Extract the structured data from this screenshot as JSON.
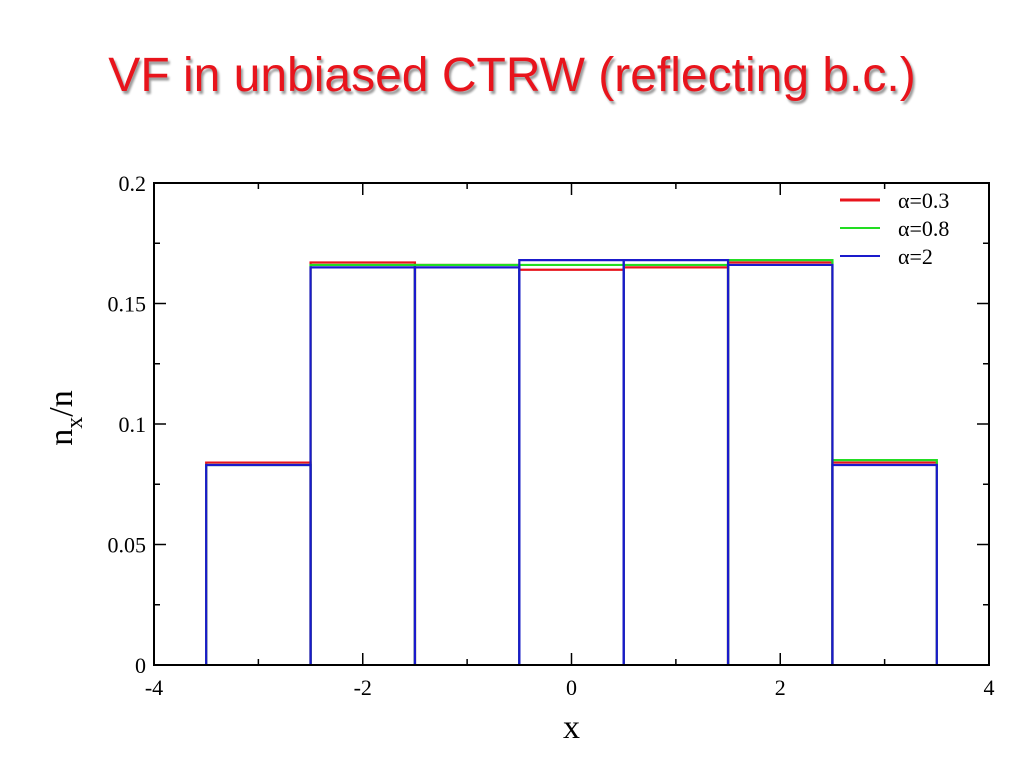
{
  "slide": {
    "title": "VF in unbiased CTRW (reflecting b.c.)"
  },
  "colors": {
    "title": "#e8141c",
    "alpha_0_3": "#e8141c",
    "alpha_0_8": "#22dd22",
    "alpha_2": "#1a1acc"
  },
  "chart_data": {
    "type": "line",
    "style": "histogram-steps",
    "xlim": [
      -4,
      4
    ],
    "ylim": [
      0,
      0.2
    ],
    "x_ticks": [
      "-4",
      "-2",
      "0",
      "2",
      "4"
    ],
    "y_ticks": [
      "0",
      "0.05",
      "0.1",
      "0.15",
      "0.2"
    ],
    "x_major_values": [
      -4,
      -2,
      0,
      2,
      4
    ],
    "y_major_values": [
      0,
      0.05,
      0.1,
      0.15,
      0.2
    ],
    "x_minor_values": [
      -3,
      -1,
      1,
      3
    ],
    "y_minor_values": [
      0.025,
      0.075,
      0.125,
      0.175
    ],
    "xlabel": "x",
    "ylabel_main": "n",
    "ylabel_sub": "x",
    "ylabel_tail": "/n",
    "grid": false,
    "legend_position": "top-right",
    "bins": [
      -3,
      -2,
      -1,
      0,
      1,
      2,
      3
    ],
    "bin_width": 1,
    "series": [
      {
        "name": "α=0.3",
        "values": [
          0.084,
          0.167,
          0.166,
          0.164,
          0.165,
          0.167,
          0.084
        ]
      },
      {
        "name": "α=0.8",
        "values": [
          0.083,
          0.166,
          0.166,
          0.166,
          0.166,
          0.168,
          0.085
        ]
      },
      {
        "name": "α=2",
        "values": [
          0.083,
          0.165,
          0.165,
          0.168,
          0.168,
          0.166,
          0.083
        ]
      }
    ]
  }
}
